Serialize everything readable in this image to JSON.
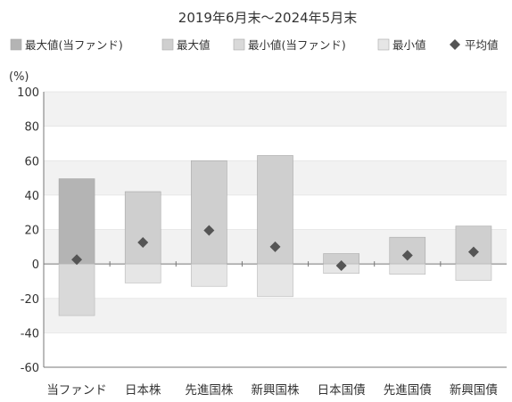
{
  "chart_data": {
    "type": "bar",
    "title": "2019年6月末～2024年5月末",
    "yunit": "(%)",
    "ylim": [
      -60,
      100
    ],
    "yticks": [
      100,
      80,
      60,
      40,
      20,
      0,
      -20,
      -40,
      -60
    ],
    "categories": [
      "当ファンド",
      "日本株",
      "先進国株",
      "新興国株",
      "日本国債",
      "先進国債",
      "新興国債"
    ],
    "legend": [
      {
        "label": "最大値(当ファンド)",
        "color": "#b4b4b4",
        "marker": "square"
      },
      {
        "label": "最大値",
        "color": "#cfcfcf",
        "marker": "square"
      },
      {
        "label": "最小値(当ファンド)",
        "color": "#d9d9d9",
        "marker": "square"
      },
      {
        "label": "最小値",
        "color": "#e6e6e6",
        "marker": "square"
      },
      {
        "label": "平均値",
        "color": "#555555",
        "marker": "diamond"
      }
    ],
    "series": [
      {
        "name": "最大値",
        "values": [
          49.5,
          42,
          60,
          63,
          6,
          15.5,
          22
        ]
      },
      {
        "name": "最小値",
        "values": [
          -30,
          -11,
          -13,
          -19,
          -5.5,
          -6,
          -9.5
        ]
      },
      {
        "name": "平均値",
        "values": [
          2.5,
          12.5,
          19.5,
          10,
          -1,
          5,
          7
        ]
      }
    ]
  }
}
